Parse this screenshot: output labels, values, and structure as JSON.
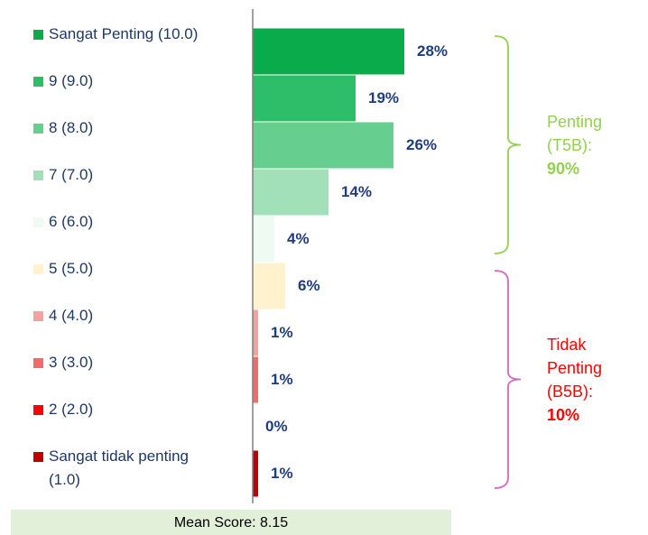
{
  "chart_data": {
    "type": "bar",
    "orientation": "horizontal",
    "categories": [
      "Sangat Penting (10.0)",
      "9 (9.0)",
      "8 (8.0)",
      "7 (7.0)",
      "6 (6.0)",
      "5 (5.0)",
      "4 (4.0)",
      "3 (3.0)",
      "2 (2.0)",
      "Sangat tidak penting\n(1.0)"
    ],
    "values": [
      28,
      19,
      26,
      14,
      4,
      6,
      1,
      1,
      0,
      1
    ],
    "value_labels": [
      "28%",
      "19%",
      "26%",
      "14%",
      "4%",
      "6%",
      "1%",
      "1%",
      "0%",
      "1%"
    ],
    "colors": [
      "#0aab4b",
      "#2ebd68",
      "#66ce8f",
      "#a1e0b9",
      "#effbf2",
      "#fff2cc",
      "#f4a1a1",
      "#f06c6c",
      "#ff0000",
      "#c00000"
    ],
    "xlim": [
      0,
      40
    ],
    "groups": [
      {
        "label": "Penting\n(T5B):",
        "total": "90%",
        "color": "#92d050",
        "from": 0,
        "to": 4
      },
      {
        "label": "Tidak\nPenting\n(B5B):",
        "total": "10%",
        "color": "#ff0000",
        "bracket_color": "#d966c0",
        "from": 5,
        "to": 9
      }
    ],
    "footer": "Mean Score: 8.15"
  }
}
